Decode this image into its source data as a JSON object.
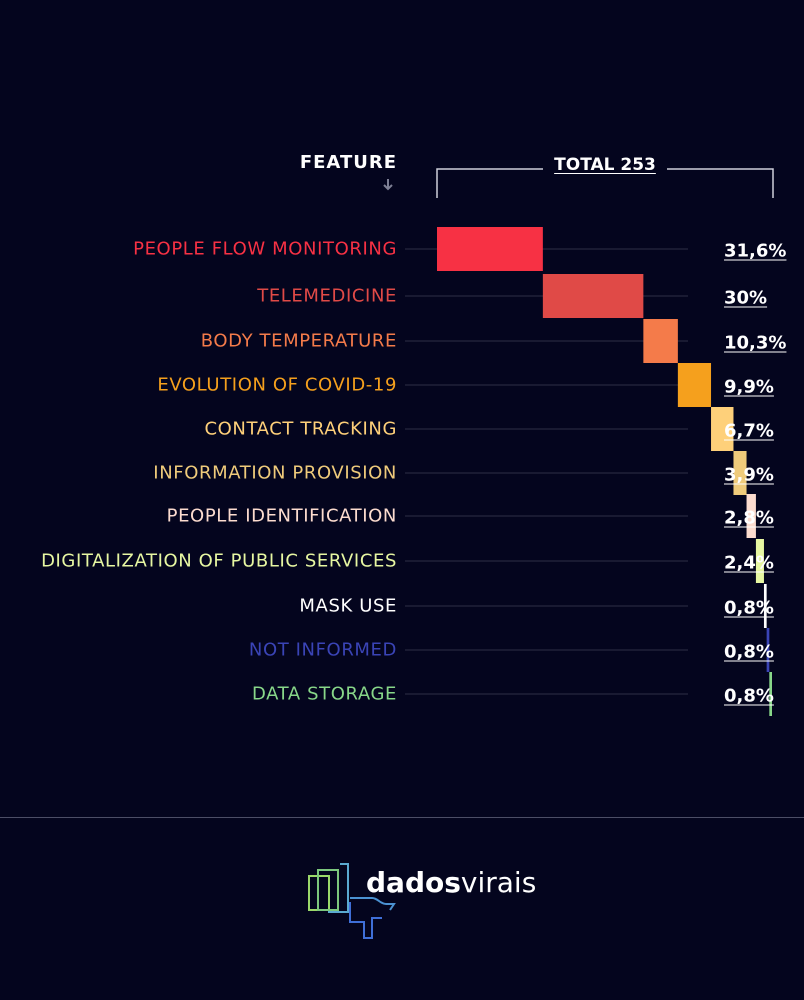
{
  "header": {
    "feature_label": "FEATURE",
    "total_label": "TOTAL 253"
  },
  "chart_data": {
    "type": "waterfall",
    "total": 253,
    "categories": [
      "PEOPLE FLOW MONITORING",
      "TELEMEDICINE",
      "BODY TEMPERATURE",
      "EVOLUTION OF COVID-19",
      "CONTACT TRACKING",
      "INFORMATION PROVISION",
      "PEOPLE IDENTIFICATION",
      "DIGITALIZATION OF PUBLIC SERVICES",
      "MASK USE",
      "NOT INFORMED",
      "DATA STORAGE"
    ],
    "values": [
      31.6,
      30,
      10.3,
      9.9,
      6.7,
      3.9,
      2.8,
      2.4,
      0.8,
      0.8,
      0.8
    ],
    "value_labels": [
      "31,6%",
      "30%",
      "10,3%",
      "9,9%",
      "6,7%",
      "3,9%",
      "2,8%",
      "2,4%",
      "0,8%",
      "0,8%",
      "0,8%"
    ],
    "colors": [
      "#f73144",
      "#e04a47",
      "#f47b4a",
      "#f5a01d",
      "#fed07a",
      "#efcb7b",
      "#fcdccf",
      "#e7f7a2",
      "#ffffff",
      "#3a44b6",
      "#88d789"
    ],
    "grid_color": "#2e3047"
  },
  "footer": {
    "brand_bold": "dados",
    "brand_light": "virais",
    "logo_colors": [
      "#9bd86a",
      "#5aa9d0",
      "#3f6fd8"
    ]
  }
}
